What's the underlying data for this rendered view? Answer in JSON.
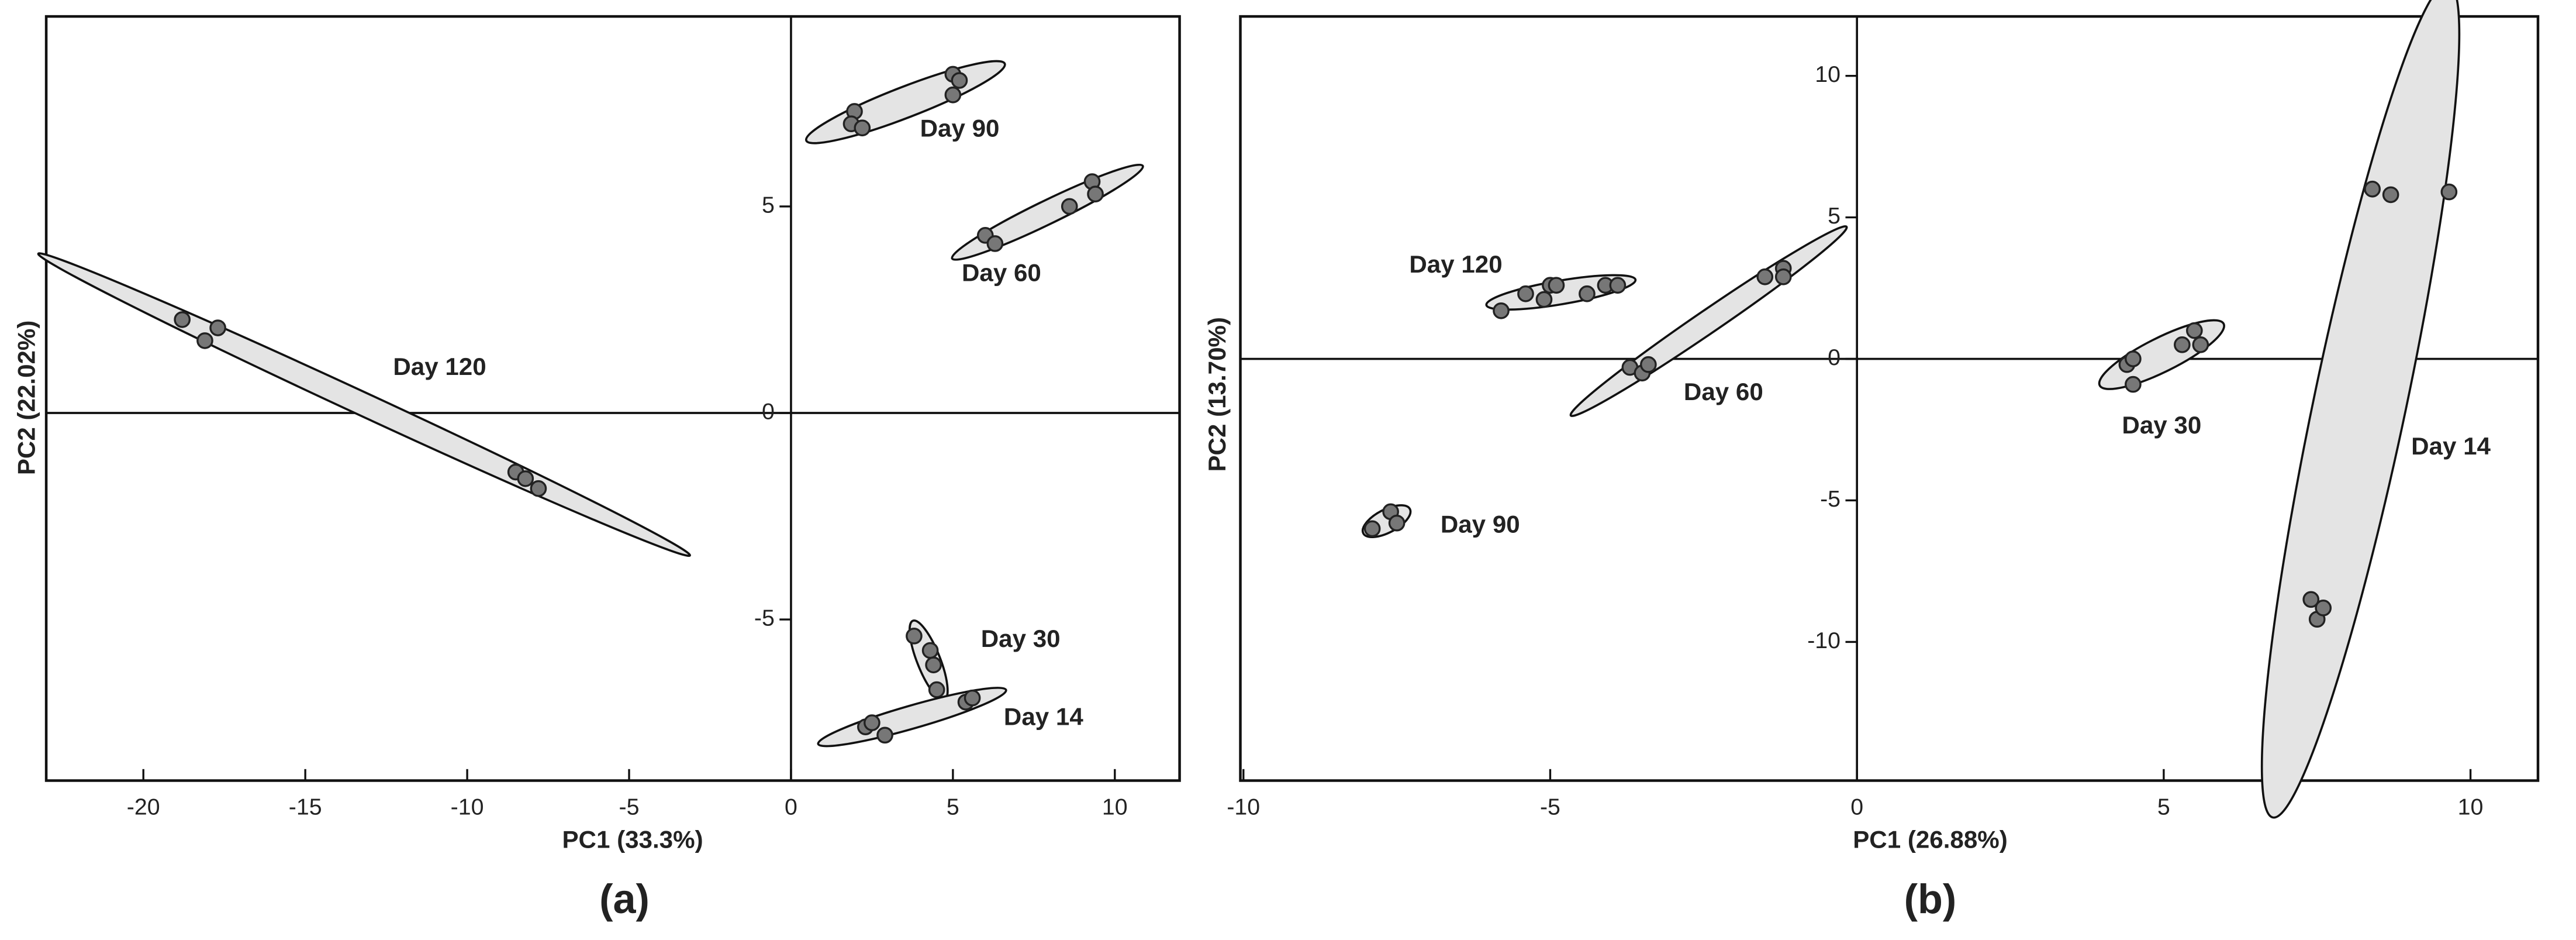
{
  "chart_data": [
    {
      "type": "scatter",
      "title": "(a)",
      "x_label": "PC1 (33.3%)",
      "y_label": "PC2 (22.02%)",
      "xlim": [
        -23,
        12
      ],
      "ylim": [
        -8.9,
        9.6
      ],
      "xticks": [
        -20,
        -15,
        -10,
        -5,
        0,
        5,
        10
      ],
      "yticks": [
        -5,
        0,
        5
      ],
      "series": [
        {
          "name": "Day 120",
          "color": "#777777",
          "x": [
            -18.8,
            -17.7,
            -18.1,
            -8.5,
            -8.2,
            -7.8
          ],
          "y": [
            2.26,
            2.06,
            1.75,
            -1.43,
            -1.59,
            -1.83
          ]
        },
        {
          "name": "Day 90",
          "color": "#777777",
          "x": [
            1.96,
            1.86,
            2.2,
            5.0,
            5.2,
            5.0
          ],
          "y": [
            7.3,
            7.0,
            6.9,
            8.2,
            8.05,
            7.7
          ]
        },
        {
          "name": "Day 60",
          "color": "#777777",
          "x": [
            6.0,
            6.3,
            8.6,
            9.3,
            9.4
          ],
          "y": [
            4.3,
            4.1,
            5.0,
            5.6,
            5.3
          ]
        },
        {
          "name": "Day 30",
          "color": "#777777",
          "x": [
            3.8,
            4.3,
            4.4,
            4.5
          ],
          "y": [
            -5.4,
            -5.75,
            -6.1,
            -6.7
          ]
        },
        {
          "name": "Day 14",
          "color": "#777777",
          "x": [
            2.3,
            2.5,
            2.9,
            5.4,
            5.6
          ],
          "y": [
            -7.6,
            -7.5,
            -7.8,
            -7.0,
            -6.9
          ]
        }
      ]
    },
    {
      "type": "scatter",
      "title": "(b)",
      "x_label": "PC1 (26.88%)",
      "y_label": "PC2 (13.70%)",
      "xlim": [
        -10.05,
        11.1
      ],
      "ylim": [
        -14.9,
        12.1
      ],
      "xticks": [
        -10,
        -5,
        0,
        5,
        10
      ],
      "yticks": [
        -10,
        -5,
        0,
        5,
        10
      ],
      "series": [
        {
          "name": "Day 120",
          "color": "#777777",
          "x": [
            -5.8,
            -5.4,
            -5.1,
            -5.0,
            -4.9,
            -4.4,
            -4.1,
            -3.9
          ],
          "y": [
            1.7,
            2.3,
            2.1,
            2.6,
            2.6,
            2.3,
            2.6,
            2.6
          ]
        },
        {
          "name": "Day 90",
          "color": "#777777",
          "x": [
            -7.9,
            -7.6,
            -7.5
          ],
          "y": [
            -6.0,
            -5.4,
            -5.8
          ]
        },
        {
          "name": "Day 60",
          "color": "#777777",
          "x": [
            -3.7,
            -3.5,
            -3.4,
            -1.5,
            -1.2,
            -1.2
          ],
          "y": [
            -0.3,
            -0.5,
            -0.2,
            2.9,
            3.2,
            2.9
          ]
        },
        {
          "name": "Day 30",
          "color": "#777777",
          "x": [
            4.4,
            4.5,
            4.5,
            5.3,
            5.5,
            5.6
          ],
          "y": [
            -0.2,
            0,
            -0.9,
            0.5,
            1.0,
            0.5
          ]
        },
        {
          "name": "Day 14",
          "color": "#777777",
          "x": [
            7.4,
            7.5,
            7.6,
            8.4,
            8.7,
            9.65
          ],
          "y": [
            -8.5,
            -9.2,
            -8.8,
            6.0,
            5.8,
            5.9
          ]
        }
      ]
    }
  ]
}
